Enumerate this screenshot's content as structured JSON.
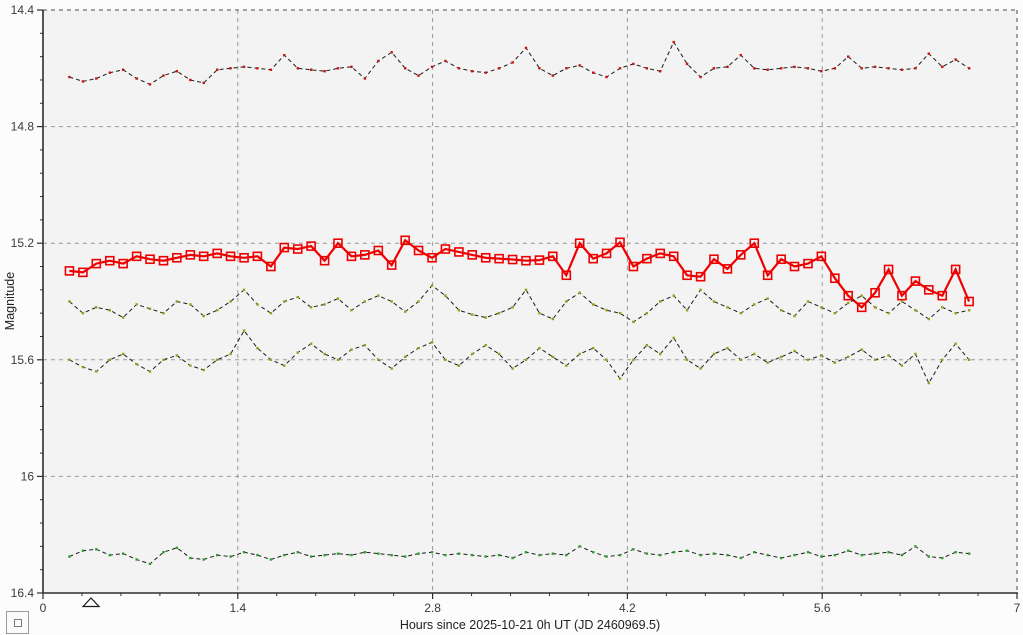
{
  "window": {
    "kind": "photometry-light-curve-graph"
  },
  "reset_button": {
    "icon": "zoom-extent-rect-icon"
  },
  "chart_data": {
    "type": "line",
    "title": "",
    "xlabel": "Hours since 2025-10-21 0h UT (JD 2460969.5)",
    "ylabel": "Magnitude",
    "xlim": [
      0,
      7
    ],
    "ylim_top": 14.4,
    "ylim_bottom": 16.4,
    "y_inverted_magnitude_scale": true,
    "grid": "dashed",
    "legend": "none",
    "x_major_ticks": [
      0,
      1.4,
      2.8,
      4.2,
      5.6,
      7
    ],
    "x_tick_labels": [
      "0",
      "1.4",
      "2.8",
      "4.2",
      "5.6",
      "7"
    ],
    "x_minor_step": 0.28,
    "y_major_ticks": [
      14.4,
      14.8,
      15.2,
      15.6,
      16,
      16.4
    ],
    "y_tick_labels": [
      "14.4",
      "14.8",
      "15.2",
      "15.6",
      "16",
      "16.4"
    ],
    "y_minor_step": 0.08,
    "colors": {
      "plot_background": "#f3f3f3",
      "page_background": "#fcfcfc",
      "axis": "#2e2e2e",
      "grid_inner": "#9a9a9a",
      "grid_edge": "#4a4a4a",
      "target_red": "#ee0000"
    },
    "markers": {
      "triangle_x_hours": 0.345
    },
    "x_hours": [
      0.19,
      0.287,
      0.383,
      0.48,
      0.576,
      0.673,
      0.769,
      0.866,
      0.962,
      1.059,
      1.155,
      1.252,
      1.348,
      1.445,
      1.541,
      1.638,
      1.734,
      1.831,
      1.927,
      2.024,
      2.12,
      2.217,
      2.313,
      2.41,
      2.506,
      2.603,
      2.699,
      2.796,
      2.892,
      2.989,
      3.085,
      3.182,
      3.278,
      3.375,
      3.471,
      3.568,
      3.664,
      3.761,
      3.857,
      3.954,
      4.05,
      4.147,
      4.243,
      4.34,
      4.436,
      4.533,
      4.629,
      4.726,
      4.822,
      4.919,
      5.015,
      5.112,
      5.208,
      5.305,
      5.401,
      5.498,
      5.594,
      5.691,
      5.787,
      5.884,
      5.98,
      6.077,
      6.173,
      6.27,
      6.366,
      6.463,
      6.559,
      6.656
    ],
    "series": [
      {
        "id": "target-variable-star",
        "style": "solid",
        "line_color": "#ee0000",
        "line_width": 2.2,
        "marker": "open-square",
        "marker_color": "#ee0000",
        "values": [
          15.295,
          15.3,
          15.27,
          15.26,
          15.27,
          15.245,
          15.255,
          15.26,
          15.25,
          15.24,
          15.245,
          15.235,
          15.245,
          15.25,
          15.245,
          15.28,
          15.215,
          15.22,
          15.21,
          15.26,
          15.2,
          15.245,
          15.24,
          15.225,
          15.275,
          15.19,
          15.225,
          15.25,
          15.22,
          15.23,
          15.24,
          15.25,
          15.253,
          15.256,
          15.26,
          15.258,
          15.245,
          15.31,
          15.2,
          15.253,
          15.235,
          15.197,
          15.28,
          15.253,
          15.235,
          15.245,
          15.31,
          15.315,
          15.255,
          15.288,
          15.24,
          15.2,
          15.31,
          15.255,
          15.28,
          15.27,
          15.245,
          15.32,
          15.38,
          15.42,
          15.37,
          15.29,
          15.38,
          15.33,
          15.36,
          15.38,
          15.29,
          15.4
        ]
      },
      {
        "id": "comparison-star-1",
        "style": "dashed",
        "line_color": "#1a1a1a",
        "line_width": 1,
        "marker": "dot",
        "marker_color": "#cc1111",
        "values": [
          14.63,
          14.645,
          14.635,
          14.615,
          14.605,
          14.635,
          14.655,
          14.625,
          14.61,
          14.64,
          14.65,
          14.605,
          14.6,
          14.595,
          14.6,
          14.605,
          14.555,
          14.6,
          14.605,
          14.61,
          14.6,
          14.595,
          14.635,
          14.575,
          14.545,
          14.6,
          14.625,
          14.595,
          14.575,
          14.6,
          14.61,
          14.615,
          14.6,
          14.58,
          14.53,
          14.6,
          14.625,
          14.6,
          14.59,
          14.615,
          14.63,
          14.6,
          14.585,
          14.6,
          14.61,
          14.51,
          14.585,
          14.63,
          14.6,
          14.595,
          14.555,
          14.6,
          14.605,
          14.6,
          14.595,
          14.6,
          14.61,
          14.6,
          14.56,
          14.6,
          14.595,
          14.6,
          14.605,
          14.6,
          14.55,
          14.595,
          14.57,
          14.6
        ]
      },
      {
        "id": "comparison-star-2",
        "style": "dashed",
        "line_color": "#1a1a1a",
        "line_width": 1,
        "marker": "dot",
        "marker_color": "#9c9a1a",
        "values": [
          15.4,
          15.44,
          15.42,
          15.43,
          15.455,
          15.41,
          15.425,
          15.44,
          15.4,
          15.41,
          15.45,
          15.43,
          15.4,
          15.36,
          15.41,
          15.44,
          15.4,
          15.385,
          15.42,
          15.41,
          15.39,
          15.43,
          15.4,
          15.38,
          15.4,
          15.435,
          15.4,
          15.345,
          15.38,
          15.43,
          15.445,
          15.455,
          15.44,
          15.42,
          15.36,
          15.44,
          15.46,
          15.4,
          15.37,
          15.41,
          15.43,
          15.44,
          15.47,
          15.44,
          15.4,
          15.38,
          15.43,
          15.36,
          15.4,
          15.42,
          15.44,
          15.41,
          15.39,
          15.43,
          15.45,
          15.4,
          15.42,
          15.44,
          15.405,
          15.38,
          15.42,
          15.44,
          15.4,
          15.43,
          15.46,
          15.42,
          15.44,
          15.43
        ]
      },
      {
        "id": "comparison-star-3",
        "style": "dashed",
        "line_color": "#1a1a1a",
        "line_width": 1,
        "marker": "dot",
        "marker_color": "#9c9a1a",
        "values": [
          15.6,
          15.625,
          15.64,
          15.6,
          15.58,
          15.615,
          15.64,
          15.6,
          15.585,
          15.62,
          15.635,
          15.6,
          15.58,
          15.5,
          15.56,
          15.6,
          15.62,
          15.575,
          15.545,
          15.58,
          15.6,
          15.565,
          15.55,
          15.6,
          15.63,
          15.59,
          15.56,
          15.54,
          15.6,
          15.62,
          15.58,
          15.55,
          15.58,
          15.63,
          15.6,
          15.56,
          15.59,
          15.62,
          15.58,
          15.56,
          15.6,
          15.665,
          15.6,
          15.55,
          15.58,
          15.525,
          15.6,
          15.63,
          15.58,
          15.56,
          15.6,
          15.58,
          15.61,
          15.59,
          15.57,
          15.6,
          15.585,
          15.61,
          15.59,
          15.565,
          15.6,
          15.585,
          15.62,
          15.58,
          15.68,
          15.6,
          15.545,
          15.6
        ]
      },
      {
        "id": "comparison-star-4",
        "style": "dashed",
        "line_color": "#1a1a1a",
        "line_width": 1,
        "marker": "dot",
        "marker_color": "#2f9e2f",
        "values": [
          16.275,
          16.255,
          16.25,
          16.27,
          16.265,
          16.285,
          16.3,
          16.26,
          16.245,
          16.28,
          16.285,
          16.27,
          16.275,
          16.26,
          16.27,
          16.285,
          16.27,
          16.26,
          16.275,
          16.27,
          16.265,
          16.27,
          16.26,
          16.265,
          16.27,
          16.275,
          16.265,
          16.26,
          16.27,
          16.265,
          16.27,
          16.275,
          16.27,
          16.28,
          16.26,
          16.27,
          16.265,
          16.27,
          16.24,
          16.26,
          16.275,
          16.27,
          16.25,
          16.265,
          16.27,
          16.26,
          16.255,
          16.27,
          16.265,
          16.27,
          16.28,
          16.26,
          16.27,
          16.28,
          16.27,
          16.26,
          16.275,
          16.27,
          16.255,
          16.27,
          16.265,
          16.26,
          16.27,
          16.24,
          16.275,
          16.28,
          16.26,
          16.265
        ]
      }
    ]
  }
}
